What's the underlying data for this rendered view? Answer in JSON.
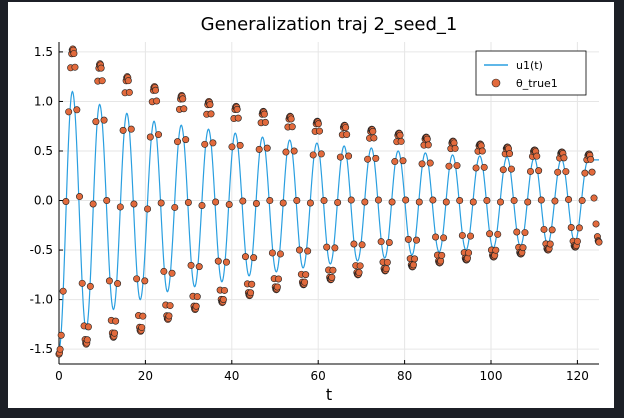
{
  "chart_data": {
    "type": "line+scatter",
    "title": "Generalization traj 2_seed_1",
    "xlabel": "t",
    "ylabel": "",
    "xlim": [
      0,
      125
    ],
    "ylim": [
      -1.65,
      1.6
    ],
    "xticks": [
      0,
      20,
      40,
      60,
      80,
      100,
      120
    ],
    "xtick_labels": [
      "0",
      "20",
      "40",
      "60",
      "80",
      "100",
      "120"
    ],
    "yticks": [
      -1.5,
      -1.0,
      -0.5,
      0.0,
      0.5,
      1.0,
      1.5
    ],
    "ytick_labels": [
      "-1.5",
      "-1.0",
      "-0.5",
      "0.0",
      "0.5",
      "1.0",
      "1.5"
    ],
    "grid": true,
    "legend_position": "top-right",
    "series": [
      {
        "name": "u1(t)",
        "kind": "line",
        "color": "#2a9fe0",
        "model": "damped cosine",
        "initial_value": -1.5,
        "period": 6.28,
        "amplitude_start": 1.5,
        "amplitude_end": 0.4,
        "peaks": [
          [
            3.1,
            1.1
          ],
          [
            9.4,
            0.97
          ],
          [
            15.7,
            0.88
          ],
          [
            22.0,
            0.8
          ],
          [
            28.3,
            0.76
          ],
          [
            34.6,
            0.72
          ],
          [
            40.8,
            0.68
          ],
          [
            47.1,
            0.64
          ],
          [
            53.4,
            0.61
          ],
          [
            59.7,
            0.58
          ],
          [
            66.0,
            0.55
          ],
          [
            72.3,
            0.53
          ],
          [
            78.5,
            0.5
          ],
          [
            84.8,
            0.48
          ],
          [
            91.1,
            0.46
          ],
          [
            97.4,
            0.45
          ],
          [
            103.7,
            0.44
          ],
          [
            110.0,
            0.43
          ],
          [
            116.3,
            0.42
          ],
          [
            122.5,
            0.41
          ]
        ],
        "troughs": [
          [
            0,
            -1.5
          ],
          [
            6.28,
            -1.3
          ],
          [
            12.6,
            -1.1
          ],
          [
            18.8,
            -1.0
          ],
          [
            25.1,
            -0.92
          ],
          [
            31.4,
            -0.87
          ],
          [
            37.7,
            -0.82
          ],
          [
            44.0,
            -0.76
          ],
          [
            50.3,
            -0.72
          ],
          [
            56.5,
            -0.68
          ],
          [
            62.8,
            -0.64
          ],
          [
            69.1,
            -0.61
          ],
          [
            75.4,
            -0.58
          ],
          [
            81.7,
            -0.55
          ],
          [
            88.0,
            -0.52
          ],
          [
            94.2,
            -0.5
          ],
          [
            100.5,
            -0.48
          ],
          [
            106.8,
            -0.46
          ],
          [
            113.1,
            -0.44
          ],
          [
            119.4,
            -0.42
          ]
        ]
      },
      {
        "name": "θ_true1",
        "kind": "scatter",
        "color": "#e26a3c",
        "sample_step": 0.25,
        "sample_cycles": "every other quarter period, with dense clusters at each extremum",
        "peaks": [
          [
            3.2,
            1.53
          ],
          [
            9.5,
            1.38
          ],
          [
            15.8,
            1.25
          ],
          [
            22.1,
            1.15
          ],
          [
            28.4,
            1.06
          ],
          [
            34.7,
            1.0
          ],
          [
            41.0,
            0.95
          ],
          [
            47.3,
            0.9
          ],
          [
            53.5,
            0.85
          ],
          [
            59.8,
            0.8
          ],
          [
            66.1,
            0.76
          ],
          [
            72.4,
            0.72
          ],
          [
            78.7,
            0.68
          ],
          [
            85.0,
            0.64
          ],
          [
            91.2,
            0.6
          ],
          [
            97.5,
            0.57
          ],
          [
            103.8,
            0.54
          ],
          [
            110.1,
            0.51
          ],
          [
            116.4,
            0.49
          ],
          [
            122.7,
            0.47
          ]
        ],
        "troughs": [
          [
            0,
            -1.55
          ],
          [
            6.3,
            -1.45
          ],
          [
            12.6,
            -1.38
          ],
          [
            18.9,
            -1.32
          ],
          [
            25.2,
            -1.2
          ],
          [
            31.5,
            -1.1
          ],
          [
            37.8,
            -1.03
          ],
          [
            44.1,
            -0.96
          ],
          [
            50.3,
            -0.9
          ],
          [
            56.6,
            -0.85
          ],
          [
            62.9,
            -0.8
          ],
          [
            69.2,
            -0.75
          ],
          [
            75.5,
            -0.71
          ],
          [
            81.8,
            -0.67
          ],
          [
            88.1,
            -0.63
          ],
          [
            94.3,
            -0.6
          ],
          [
            100.6,
            -0.57
          ],
          [
            106.9,
            -0.54
          ],
          [
            113.2,
            -0.5
          ],
          [
            119.5,
            -0.47
          ],
          [
            125,
            -0.42
          ]
        ]
      }
    ]
  }
}
